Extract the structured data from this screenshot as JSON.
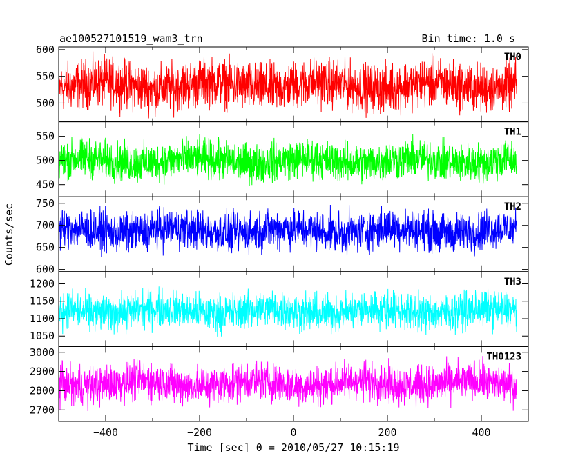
{
  "chart_data": {
    "type": "line",
    "title_left": "ae100527101519_wam3_trn",
    "title_right": "Bin time: 1.0 s",
    "xlabel": "Time [sec] 0 = 2010/05/27 10:15:19",
    "ylabel": "Counts/sec",
    "xlim": [
      -500,
      500
    ],
    "x_range_data": [
      -500,
      475
    ],
    "x_ticks": [
      -400,
      -200,
      0,
      200,
      400
    ],
    "grid": false,
    "panels": [
      {
        "name": "TH0",
        "color": "#ff0000",
        "ylim": [
          465,
          605
        ],
        "y_ticks": [
          500,
          550,
          600
        ],
        "mean": 533,
        "amplitude": 38,
        "spread": [
          470,
          605
        ]
      },
      {
        "name": "TH1",
        "color": "#00ff00",
        "ylim": [
          425,
          580
        ],
        "y_ticks": [
          450,
          500,
          550
        ],
        "mean": 499,
        "amplitude": 34,
        "spread": [
          430,
          575
        ]
      },
      {
        "name": "TH2",
        "color": "#0000ff",
        "ylim": [
          595,
          765
        ],
        "y_ticks": [
          600,
          650,
          700,
          750
        ],
        "mean": 688,
        "amplitude": 38,
        "spread": [
          600,
          765
        ]
      },
      {
        "name": "TH3",
        "color": "#00ffff",
        "ylim": [
          1020,
          1235
        ],
        "y_ticks": [
          1050,
          1100,
          1150,
          1200
        ],
        "mean": 1122,
        "amplitude": 45,
        "spread": [
          1030,
          1230
        ]
      },
      {
        "name": "TH0123",
        "color": "#ff00ff",
        "ylim": [
          2640,
          3030
        ],
        "y_ticks": [
          2700,
          2800,
          2900,
          3000
        ],
        "mean": 2838,
        "amplitude": 85,
        "spread": [
          2660,
          3010
        ]
      }
    ]
  }
}
